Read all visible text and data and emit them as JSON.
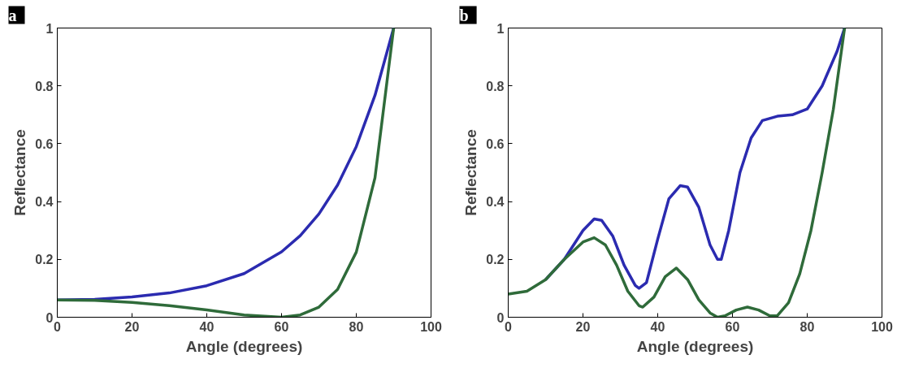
{
  "chart_data": [
    {
      "type": "line",
      "xlabel": "Angle (degrees)",
      "ylabel": "Reflectance",
      "annotations": [
        "a"
      ],
      "xlim": [
        0,
        100
      ],
      "ylim": [
        0,
        1
      ],
      "xticks": [
        0,
        20,
        40,
        60,
        80,
        100
      ],
      "yticks": [
        0,
        0.2,
        0.4,
        0.6,
        0.8,
        1
      ],
      "grid": false,
      "line_style": "solid",
      "marker": "none",
      "x": [
        0,
        10,
        20,
        30,
        40,
        50,
        60,
        65,
        70,
        75,
        80,
        85,
        90
      ],
      "series": [
        {
          "color": "#2b2bb0",
          "values": [
            0.06,
            0.062,
            0.07,
            0.084,
            0.109,
            0.151,
            0.226,
            0.282,
            0.357,
            0.457,
            0.59,
            0.767,
            1
          ]
        },
        {
          "color": "#2f6b3a",
          "values": [
            0.06,
            0.058,
            0.051,
            0.04,
            0.025,
            0.008,
            0,
            0.008,
            0.035,
            0.096,
            0.225,
            0.482,
            1
          ]
        }
      ]
    },
    {
      "type": "line",
      "xlabel": "Angle (degrees)",
      "ylabel": "Reflectance",
      "annotations": [
        "b"
      ],
      "xlim": [
        0,
        100
      ],
      "ylim": [
        0,
        1
      ],
      "xticks": [
        0,
        20,
        40,
        60,
        80,
        100
      ],
      "yticks": [
        0,
        0.2,
        0.4,
        0.6,
        0.8,
        1
      ],
      "grid": false,
      "line_style": "solid",
      "marker": "none",
      "series": [
        {
          "color": "#2b2bb0",
          "x": [
            10,
            15,
            20,
            23,
            25,
            28,
            31,
            34,
            35,
            37,
            40,
            43,
            46,
            48,
            51,
            54,
            56,
            57,
            59,
            62,
            65,
            68,
            72,
            76,
            80,
            84,
            88,
            90
          ],
          "values": [
            0.13,
            0.2,
            0.3,
            0.34,
            0.335,
            0.28,
            0.18,
            0.11,
            0.1,
            0.12,
            0.27,
            0.41,
            0.455,
            0.45,
            0.38,
            0.25,
            0.2,
            0.2,
            0.3,
            0.5,
            0.62,
            0.68,
            0.695,
            0.7,
            0.72,
            0.8,
            0.92,
            1
          ]
        },
        {
          "color": "#2f6b3a",
          "x": [
            0,
            5,
            10,
            15,
            20,
            23,
            26,
            29,
            32,
            35,
            36,
            39,
            42,
            45,
            48,
            51,
            54,
            56,
            58,
            61,
            64,
            67,
            70,
            72,
            75,
            78,
            81,
            84,
            87,
            90
          ],
          "values": [
            0.08,
            0.09,
            0.13,
            0.2,
            0.26,
            0.275,
            0.25,
            0.18,
            0.09,
            0.04,
            0.035,
            0.07,
            0.14,
            0.17,
            0.13,
            0.06,
            0.015,
            0,
            0.005,
            0.025,
            0.035,
            0.025,
            0.005,
            0.005,
            0.05,
            0.15,
            0.3,
            0.5,
            0.72,
            1
          ]
        }
      ]
    }
  ]
}
